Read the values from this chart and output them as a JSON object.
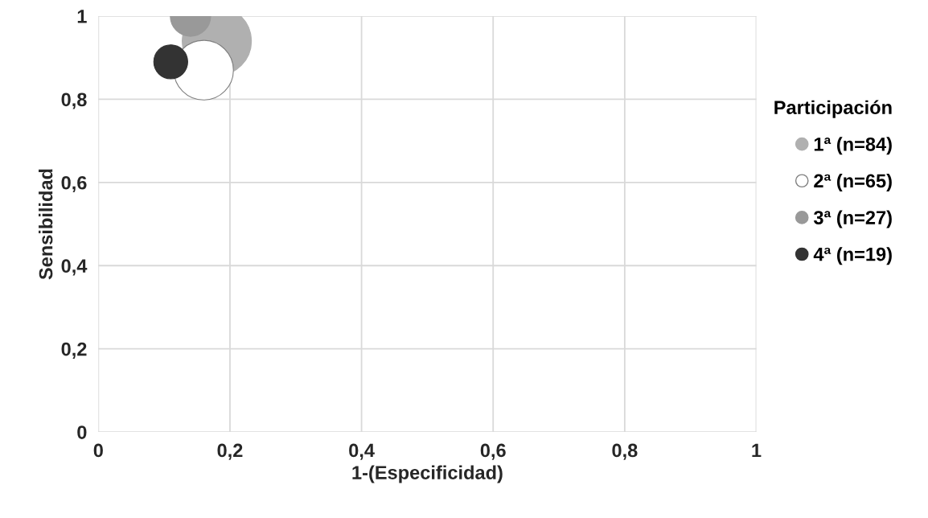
{
  "chart_data": {
    "type": "bubble",
    "xlabel": "1-(Especificidad)",
    "ylabel": "Sensibilidad",
    "legend_title": "Participación",
    "series": [
      {
        "name": "1ª (n=84)",
        "color": "#b0b0b0",
        "x": [
          0.18
        ],
        "values": [
          0.94
        ],
        "sizes": [
          1
        ]
      },
      {
        "name": "2ª (n=65)",
        "color": "#ffffff",
        "x": [
          0.16
        ],
        "values": [
          0.87
        ],
        "sizes": [
          0.74
        ]
      },
      {
        "name": "3ª (n=27)",
        "color": "#999999",
        "x": [
          0.14
        ],
        "values": [
          1.0
        ],
        "sizes": [
          0.34
        ]
      },
      {
        "name": "4ª (n=19)",
        "color": "#333333",
        "x": [
          0.11
        ],
        "values": [
          0.89
        ],
        "sizes": [
          0.24
        ]
      }
    ],
    "xlim": [
      0,
      1
    ],
    "ylim": [
      0,
      1
    ],
    "xticks": [
      0,
      {
        "value": 0.2,
        "label": "0,2"
      },
      {
        "value": 0.4,
        "label": "0,4"
      },
      {
        "value": 0.6,
        "label": "0,6"
      },
      {
        "value": 0.8,
        "label": "0,8"
      },
      1
    ],
    "yticks": [
      0,
      {
        "value": 0.2,
        "label": "0,2"
      },
      {
        "value": 0.4,
        "label": "0,4"
      },
      {
        "value": 0.6,
        "label": "0,6"
      },
      {
        "value": 0.8,
        "label": "0,8"
      },
      1
    ],
    "grid": true,
    "legend": "right"
  }
}
